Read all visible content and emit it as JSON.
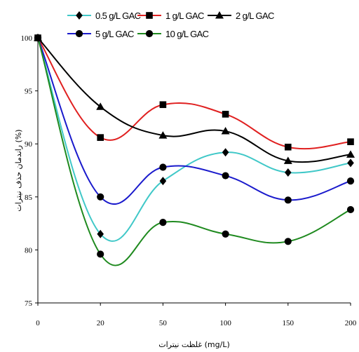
{
  "chart_data": {
    "type": "line",
    "title": "",
    "xlabel": "غلظت نیترات (mg/L)",
    "ylabel": "راندمان حذف نیترات (%)",
    "categories": [
      "0",
      "20",
      "50",
      "100",
      "150",
      "200"
    ],
    "ylim": [
      75,
      100
    ],
    "yticks": [
      "75",
      "80",
      "85",
      "90",
      "95",
      "100"
    ],
    "grid": false,
    "legend_position": "top",
    "series": [
      {
        "name": "0.5 g/L GAC",
        "marker": "diamond",
        "color": "#40c8c8",
        "values": [
          100,
          81.5,
          86.5,
          89.2,
          87.3,
          88.2
        ]
      },
      {
        "name": "1 g/L GAC",
        "marker": "square",
        "color": "#e02020",
        "values": [
          100,
          90.6,
          93.7,
          92.8,
          89.7,
          90.2
        ]
      },
      {
        "name": "2 g/L GAC",
        "marker": "triangle",
        "color": "#000000",
        "values": [
          100,
          93.5,
          90.8,
          91.2,
          88.4,
          89.0
        ]
      },
      {
        "name": "5 g/L GAC",
        "marker": "circle",
        "color": "#1a1acc",
        "values": [
          100,
          85.0,
          87.8,
          87.0,
          84.7,
          86.5
        ]
      },
      {
        "name": "10 g/L GAC",
        "marker": "circle",
        "color": "#1f8a1f",
        "values": [
          100,
          79.6,
          82.6,
          81.5,
          80.8,
          83.8
        ]
      }
    ]
  }
}
